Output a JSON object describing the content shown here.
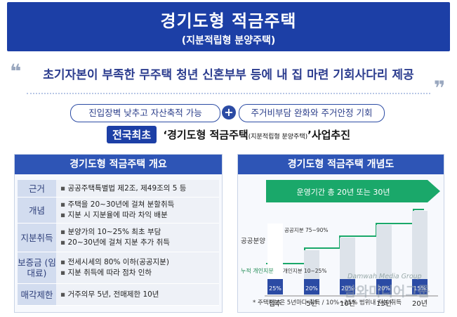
{
  "header": {
    "title": "경기도형 적금주택",
    "subtitle": "(지분적립형 분양주택)"
  },
  "tagline": {
    "text": "초기자본이 부족한 무주택 청년 신혼부부 등에 내 집 마련 기회사다리 제공",
    "open_quote": "❝",
    "close_quote": "❞"
  },
  "benefits": {
    "left": "진입장벽 낮추고 자산축적 가능",
    "plus": "+",
    "right": "주거비부담 완화와 주거안정 기회"
  },
  "headline": {
    "badge": "전국최초",
    "main_pre": "‘경기도형 적금주택",
    "small": "(지분적립형 분양주택)",
    "main_post": "’사업추진"
  },
  "overview": {
    "title": "경기도형 적금주택 개요",
    "rows": [
      {
        "head": "근거",
        "items": [
          "공공주택특별법 제2조, 제49조의 5 등"
        ]
      },
      {
        "head": "개념",
        "items": [
          "주택을 20~30년에 걸쳐 분할취득",
          "지분 시 지분율에 따라 차익 배분"
        ]
      },
      {
        "head": "지분취득",
        "items": [
          "분양가의 10~25% 최초 부담",
          "20~30년에 걸쳐 지분 추가 취득"
        ]
      },
      {
        "head": "보증금 (임대료)",
        "items": [
          "전세시세의 80% 이하(공공지분)",
          "지분 취득에 따라 점차 인하"
        ]
      },
      {
        "head": "매각제한",
        "items": [
          "거주의무 5년, 전매제한 10년"
        ]
      }
    ]
  },
  "concept": {
    "title": "경기도형 적금주택 개념도",
    "arrow": "운영기간 총 20년 또는 30년",
    "public_label": "공공분양",
    "public_share": "공공지분 75~90%",
    "personal_label": "누적 개인지분",
    "personal_share": "개인지분 10~25%",
    "ylabel": "공공분양",
    "columns": [
      {
        "label": "입주",
        "personal": "25%"
      },
      {
        "label": "5년",
        "personal": "20%"
      },
      {
        "label": "10년",
        "personal": "20%"
      },
      {
        "label": "15년",
        "personal": "20%"
      },
      {
        "label": "20년",
        "personal": "15%"
      }
    ],
    "footnote": "* 주택지분은 5년마다 취득 / 10%~25% 범위내 지분 취득"
  },
  "watermark": {
    "en": "Damwah Media Group",
    "ko": "담와미디어그룹"
  },
  "colors": {
    "primary": "#1c3fa6",
    "accent_green": "#1aa86a",
    "personal_blue": "#2b4ba4"
  }
}
